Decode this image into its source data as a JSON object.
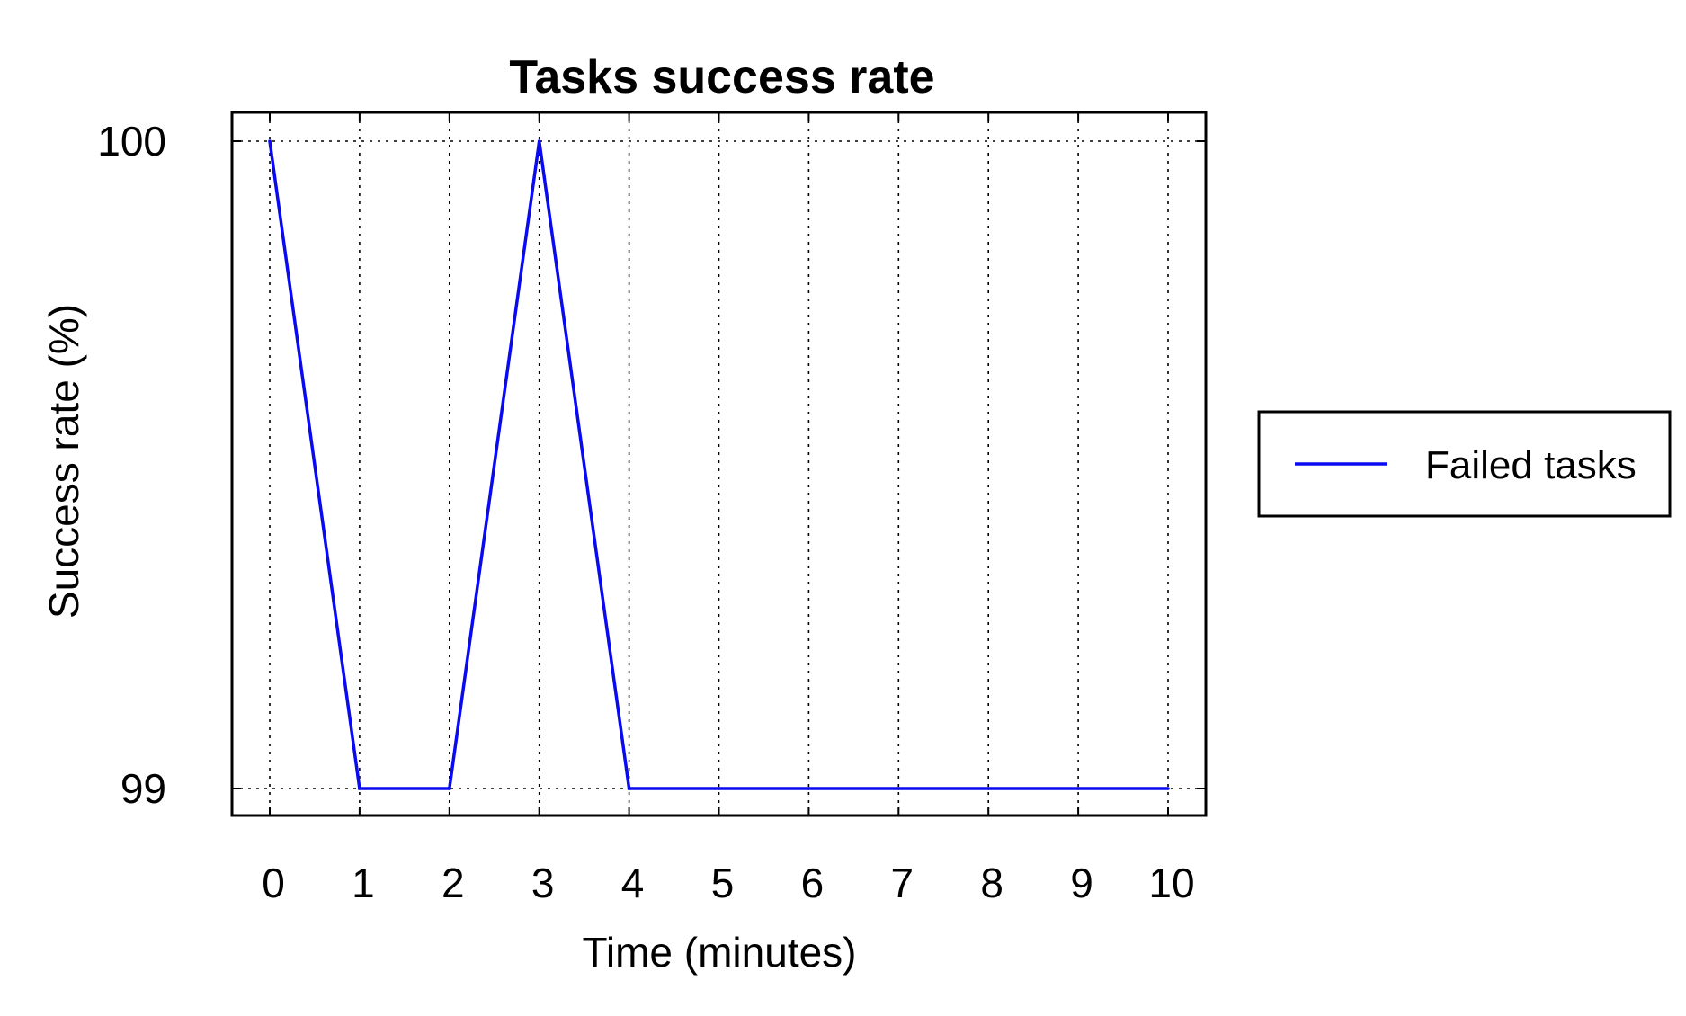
{
  "chart_data": {
    "type": "line",
    "title": "Tasks success rate",
    "xlabel": "Time (minutes)",
    "ylabel": "Success rate (%)",
    "x": [
      0,
      1,
      2,
      3,
      4,
      5,
      6,
      7,
      8,
      9,
      10
    ],
    "xticks": [
      "0",
      "1",
      "2",
      "3",
      "4",
      "5",
      "6",
      "7",
      "8",
      "9",
      "10"
    ],
    "yticks": [
      {
        "value": 99,
        "label": "99"
      },
      {
        "value": 100,
        "label": "100"
      }
    ],
    "xlim": [
      0,
      10
    ],
    "ylim": [
      99,
      100
    ],
    "grid": true,
    "legend_position": "right",
    "series": [
      {
        "name": "Failed tasks",
        "color": "#0a0af0",
        "values": [
          100,
          99,
          99,
          100,
          99,
          99,
          99,
          99,
          99,
          99,
          99
        ]
      }
    ]
  }
}
